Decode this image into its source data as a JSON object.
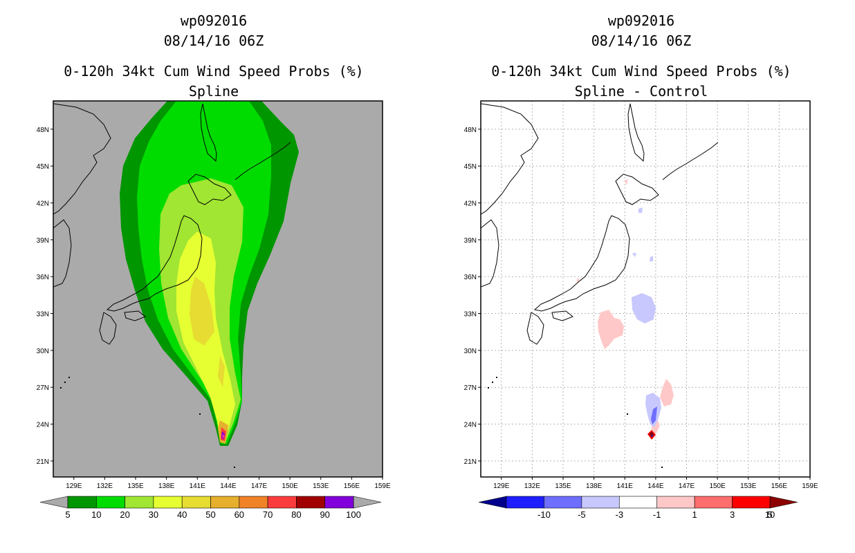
{
  "panels": [
    {
      "storm_id": "wp092016",
      "datetime": "08/14/16 06Z",
      "title": "0-120h 34kt Cum Wind Speed Probs (%)",
      "subtitle": "Spline",
      "background_color": "#aaaaaa",
      "colorbar": {
        "labels": [
          "5",
          "10",
          "20",
          "30",
          "40",
          "50",
          "60",
          "70",
          "80",
          "90",
          "100"
        ],
        "colors": [
          "#009600",
          "#00dc00",
          "#a0e632",
          "#e6ff32",
          "#e6dc32",
          "#e6af2d",
          "#f08228",
          "#fa3c3c",
          "#a00000",
          "#8200dc"
        ],
        "ends": [
          "#aaaaaa",
          "#aaaaaa"
        ]
      }
    },
    {
      "storm_id": "wp092016",
      "datetime": "08/14/16 06Z",
      "title": "0-120h 34kt Cum Wind Speed Probs (%)",
      "subtitle": "Spline - Control",
      "background_color": "#ffffff",
      "colorbar": {
        "labels": [
          "-10",
          "-5",
          "-3",
          "-1",
          "1",
          "3",
          "5",
          "10"
        ],
        "colors": [
          "#1e1eff",
          "#6e6eff",
          "#c8c8ff",
          "#ffffff",
          "#ffc8c8",
          "#ff6e6e",
          "#ff0000"
        ],
        "ends": [
          "#00008c",
          "#8c0000"
        ]
      }
    }
  ],
  "chart_data": [
    {
      "type": "contour_map",
      "title": "0-120h 34kt Cum Wind Speed Probs (%)",
      "subtitle": "Spline",
      "x_ticks": [
        "129E",
        "132E",
        "135E",
        "138E",
        "141E",
        "144E",
        "147E",
        "150E",
        "153E",
        "156E",
        "159E"
      ],
      "y_ticks": [
        "21N",
        "24N",
        "27N",
        "30N",
        "33N",
        "36N",
        "39N",
        "42N",
        "45N",
        "48N"
      ],
      "xlim": [
        127,
        159
      ],
      "ylim": [
        19.7,
        50.3
      ],
      "levels": [
        5,
        10,
        20,
        30,
        40,
        50,
        60,
        70,
        80,
        90,
        100
      ],
      "grid": false,
      "storm_track_start": {
        "lon": 144.0,
        "lat": 22.7
      }
    },
    {
      "type": "contour_map",
      "title": "0-120h 34kt Cum Wind Speed Probs (%)",
      "subtitle": "Spline - Control",
      "x_ticks": [
        "129E",
        "132E",
        "135E",
        "138E",
        "141E",
        "144E",
        "147E",
        "150E",
        "153E",
        "156E",
        "159E"
      ],
      "y_ticks": [
        "21N",
        "24N",
        "27N",
        "30N",
        "33N",
        "36N",
        "39N",
        "42N",
        "45N",
        "48N"
      ],
      "xlim": [
        127,
        159
      ],
      "ylim": [
        19.7,
        50.3
      ],
      "levels": [
        -10,
        -5,
        -3,
        -1,
        1,
        3,
        5,
        10
      ],
      "grid": true,
      "storm_track_start": {
        "lon": 143.9,
        "lat": 22.9
      }
    }
  ]
}
